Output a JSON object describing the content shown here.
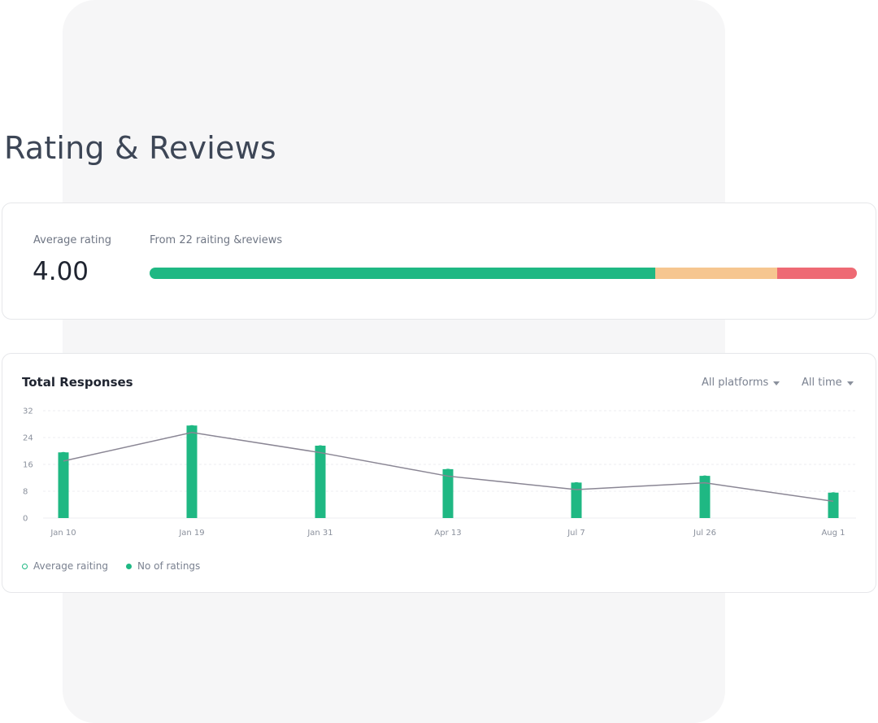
{
  "header": {
    "title": "Rating & Reviews"
  },
  "rating": {
    "average_label": "Average rating",
    "average_value": "4.00",
    "from_label": "From 22 raiting &reviews",
    "bar_segments": [
      {
        "name": "positive",
        "fraction": 0.715,
        "color": "#1fb883"
      },
      {
        "name": "neutral",
        "fraction": 0.172,
        "color": "#f6c690"
      },
      {
        "name": "negative",
        "fraction": 0.113,
        "color": "#ee6a74"
      }
    ]
  },
  "responses": {
    "title": "Total Responses",
    "platform_filter": "All platforms",
    "time_filter": "All time",
    "legend": {
      "average": "Average raiting",
      "count": "No of ratings"
    }
  },
  "colors": {
    "accent": "#1fb883",
    "line": "#8a8694",
    "grid": "#eceef1"
  },
  "chart_data": {
    "type": "bar",
    "categories": [
      "Jan 10",
      "Jan 19",
      "Jan 31",
      "Apr 13",
      "Jul 7",
      "Jul 26",
      "Aug 1"
    ],
    "ylim": [
      0,
      32
    ],
    "yticks": [
      "0",
      "8",
      "16",
      "24",
      "32"
    ],
    "series": [
      {
        "name": "No of ratings",
        "type": "bar",
        "values": [
          18,
          26,
          20,
          13,
          9,
          11,
          6
        ]
      },
      {
        "name": "Average raiting",
        "type": "line",
        "values": [
          17,
          25.5,
          19.5,
          12.5,
          8.5,
          10.5,
          5
        ]
      }
    ],
    "grid": true,
    "legend_position": "bottom-left"
  }
}
